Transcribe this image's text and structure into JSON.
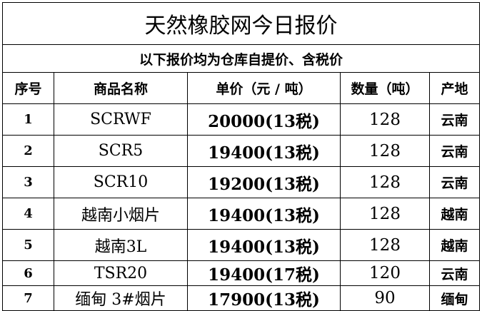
{
  "title": "天然橡胶网今日报价",
  "subtitle": "以下报价均为仓库自提价、含税价",
  "headers": [
    "序号",
    "商品名称",
    "单价（元 / 吨）",
    "数量（吨）",
    "产地"
  ],
  "rows": [
    {
      "no": "1",
      "name": "SCRWF",
      "price": "20000(13税)",
      "qty": "128",
      "origin": "云南"
    },
    {
      "no": "2",
      "name": "SCR5",
      "price": "19400(13税)",
      "qty": "128",
      "origin": "云南"
    },
    {
      "no": "3",
      "name": "SCR10",
      "price": "19200(13税)",
      "qty": "128",
      "origin": "云南"
    },
    {
      "no": "4",
      "name": "越南小烟片",
      "price": "19400(13税)",
      "qty": "128",
      "origin": "越南"
    },
    {
      "no": "5",
      "name": "越南3L",
      "price": "19400(13税)",
      "qty": "128",
      "origin": "越南"
    },
    {
      "no": "6",
      "name": "TSR20",
      "price": "19400(17税)",
      "qty": "120",
      "origin": "云南"
    },
    {
      "no": "7",
      "name": "缅甸 3#烟片",
      "price": "17900(13税)",
      "qty": "90",
      "origin": "缅甸"
    }
  ]
}
